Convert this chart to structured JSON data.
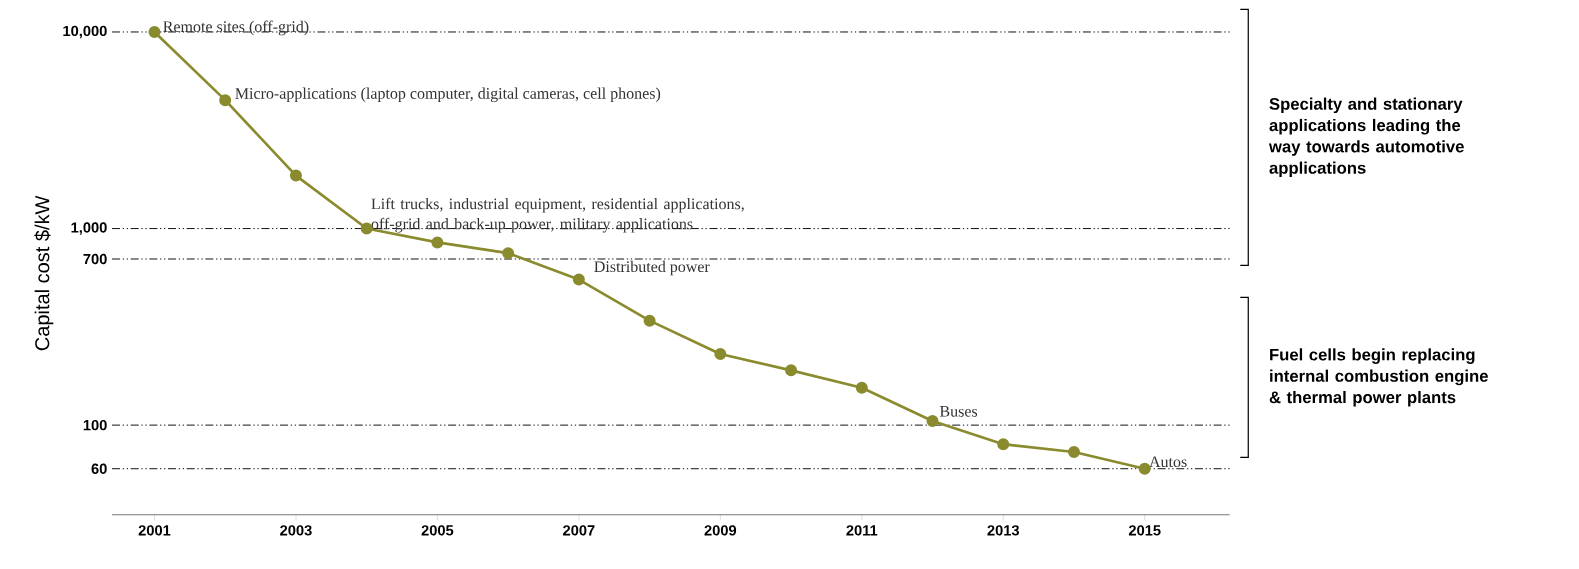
{
  "chart_data": {
    "type": "line",
    "ylabel": "Capital cost $/kW",
    "color": "#8a8a2e",
    "marker": "circle",
    "log": true,
    "grid": "y",
    "x": [
      2001,
      2002,
      2003,
      2004,
      2005,
      2006,
      2007,
      2008,
      2009,
      2010,
      2011,
      2012,
      2013,
      2014,
      2015
    ],
    "values": [
      10000,
      4500,
      1860,
      1000,
      850,
      750,
      550,
      340,
      230,
      190,
      155,
      105,
      80,
      73,
      60
    ],
    "xlim": [
      2000.4,
      2016.2
    ],
    "ylim": [
      35,
      10000
    ],
    "xticks": [
      2001,
      2003,
      2005,
      2007,
      2009,
      2011,
      2013,
      2015
    ],
    "yticks": [
      60,
      100,
      700,
      {
        "value": 1000,
        "label": "1,000"
      },
      {
        "value": 10000,
        "label": "10,000"
      }
    ],
    "annotations": [
      {
        "text": "Remote sites (off-grid)",
        "x": 2001,
        "y": 10000
      },
      {
        "text": "Micro-applications (laptop computer, digital cameras, cell phones)",
        "x": 2002,
        "y": 4500
      },
      {
        "text": "Lift trucks, industrial equipment, residential applications, off-grid and back-up power, military applications",
        "x": 2004,
        "y": 1000
      },
      {
        "text": "Distributed power",
        "x": 2007,
        "y": 550
      },
      {
        "text": "Buses",
        "x": 2012,
        "y": 105
      },
      {
        "text": "Autos",
        "x": 2015,
        "y": 60
      },
      "Specialty and stationary applications leading the way towards automotive applications",
      "Fuel cells begin replacing internal combustion engine & thermal power plants"
    ]
  }
}
